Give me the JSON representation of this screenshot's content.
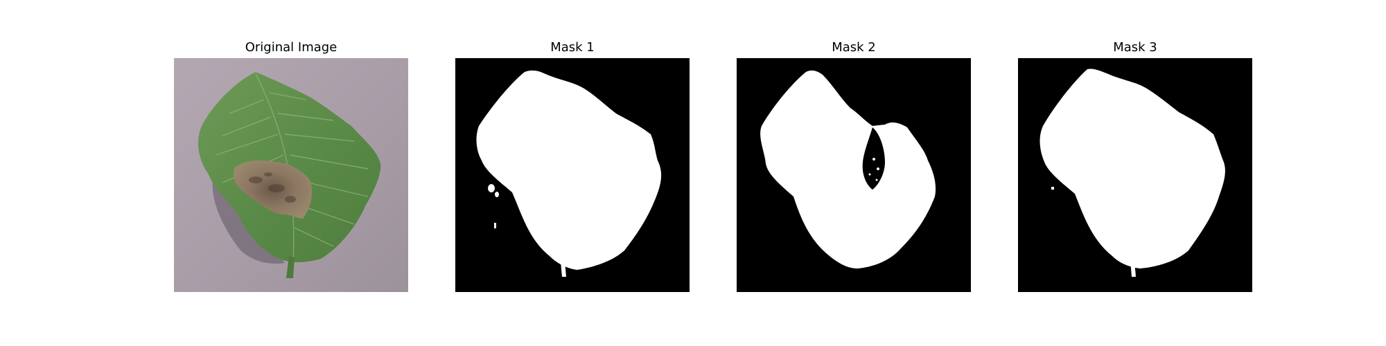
{
  "panels": [
    {
      "title": "Original Image"
    },
    {
      "title": "Mask 1"
    },
    {
      "title": "Mask 2"
    },
    {
      "title": "Mask 3"
    }
  ],
  "colors": {
    "background": "#ffffff",
    "mask_background": "#000000",
    "mask_foreground": "#ffffff",
    "leaf_green": "#5e8f4a",
    "lesion_brown": "#8a7560",
    "surface_gray": "#a59aa3"
  }
}
